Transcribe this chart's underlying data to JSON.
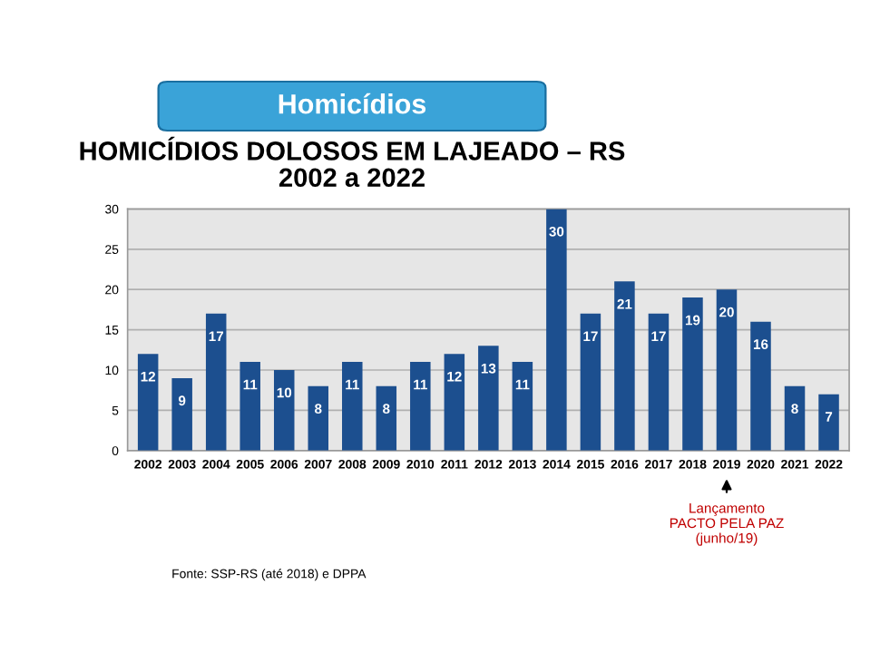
{
  "chart_data": {
    "type": "bar",
    "title": "Homicídios",
    "subtitle": "HOMICÍDIOS DOLOSOS EM LAJEADO – RS\n2002 a 2022",
    "categories": [
      "2002",
      "2003",
      "2004",
      "2005",
      "2006",
      "2007",
      "2008",
      "2009",
      "2010",
      "2011",
      "2012",
      "2013",
      "2014",
      "2015",
      "2016",
      "2017",
      "2018",
      "2019",
      "2020",
      "2021",
      "2022"
    ],
    "values": [
      12,
      9,
      17,
      11,
      10,
      8,
      11,
      8,
      11,
      12,
      13,
      11,
      30,
      17,
      21,
      17,
      19,
      20,
      16,
      8,
      7
    ],
    "color": "#1c4f8f",
    "data_labels": true,
    "ylim": [
      0,
      30
    ],
    "yticks": [
      0,
      5,
      10,
      15,
      20,
      25,
      30
    ],
    "grid": "y",
    "annotations": [
      {
        "text": "Lançamento\nPACTO PELA PAZ\n(junho/19)",
        "x": "2019"
      },
      "Fonte: SSP-RS (até 2018) e DPPA"
    ]
  }
}
